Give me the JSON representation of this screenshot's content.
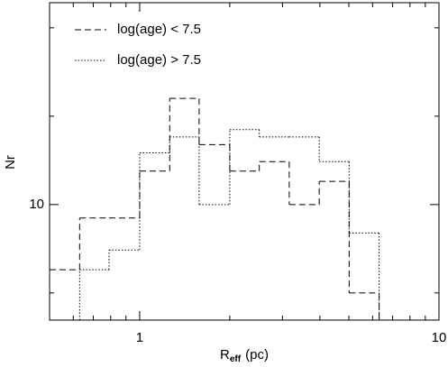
{
  "chart_data": {
    "type": "step-histogram",
    "ylabel": "Nr",
    "xlabel_symbol": "R",
    "xlabel_subscript": "eff",
    "xlabel_unit": "(pc)",
    "xscale": "log",
    "yscale": "log",
    "xlim": [
      0.5,
      10
    ],
    "ylim": [
      4.04,
      48.7
    ],
    "xticks": [
      1,
      10
    ],
    "xminor_ticks": [
      0.6,
      0.7,
      0.8,
      0.9,
      2,
      3,
      4,
      5,
      6,
      7,
      8,
      9
    ],
    "yticks": [
      10
    ],
    "yminor_ticks": [
      5,
      20,
      40
    ],
    "legend": "upper left",
    "bins": [
      0.5,
      0.63,
      0.79,
      1,
      1.26,
      1.58,
      2,
      2.51,
      3.16,
      3.98,
      5.01,
      6.31,
      7.94,
      10
    ],
    "series": [
      {
        "name": "log(age) < 7.5",
        "color": "#000000",
        "dash": "dashed",
        "values": [
          6,
          9,
          9,
          13,
          23,
          16,
          13,
          14,
          10,
          12,
          5,
          0,
          0
        ]
      },
      {
        "name": "log(age) > 7.5",
        "color": "#000000",
        "dash": "dotted",
        "values": [
          0,
          6,
          7,
          15,
          17,
          10,
          18,
          17,
          17,
          14,
          8,
          0,
          0
        ]
      }
    ]
  }
}
